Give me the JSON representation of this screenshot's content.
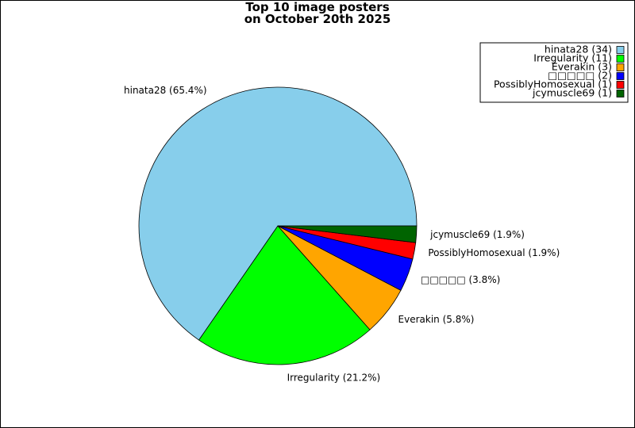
{
  "chart_data": {
    "type": "pie",
    "title": "Top 10 image posters\non October 20th 2025",
    "categories": [
      "hinata28",
      "Irregularity",
      "Everakin",
      "□□□□□",
      "PossiblyHomosexual",
      "jcymuscle69"
    ],
    "values": [
      34,
      11,
      3,
      2,
      1,
      1
    ],
    "value_labels": [
      "hinata28 (65.4%)",
      "Irregularity (21.2%)",
      "Everakin (5.8%)",
      "□□□□□ (3.8%)",
      "PossiblyHomosexual (1.9%)",
      "jcymuscle69 (1.9%)"
    ],
    "legend_labels": [
      "hinata28 (34)",
      "Irregularity (11)",
      "Everakin (3)",
      "□□□□□ (2)",
      "PossiblyHomosexual (1)",
      "jcymuscle69 (1)"
    ],
    "colors": [
      "#87ceeb",
      "#00ff00",
      "#ffa500",
      "#0000ff",
      "#ff0000",
      "#006400"
    ],
    "start_angle": 0,
    "legend": "upper right"
  }
}
